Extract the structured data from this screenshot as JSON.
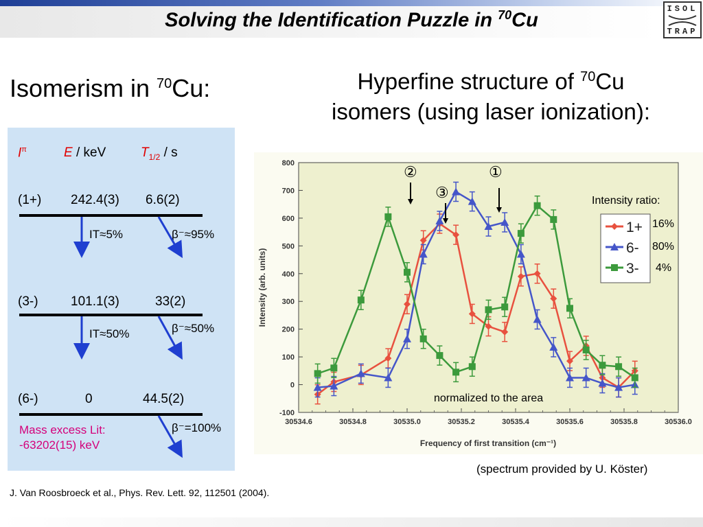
{
  "slide": {
    "title_main": "Solving the Identification Puzzle in ",
    "title_mass": "70",
    "title_elem": "Cu",
    "logo_top": "ISOL",
    "logo_bottom": "TRAP"
  },
  "left": {
    "heading_pre": "Isomerism in ",
    "heading_mass": "70",
    "heading_post": "Cu:",
    "col_spin": "I",
    "col_spin_sup": "π",
    "col_energy_var": "E",
    "col_energy_unit": " / keV",
    "col_halflife_var": "T",
    "col_halflife_sub": "1/2",
    "col_halflife_unit": " / s",
    "levels": [
      {
        "spin": "(1+)",
        "energy": "242.4(3)",
        "halflife": "6.6(2)",
        "it": "IT≈5%",
        "beta": "β⁻≈95%"
      },
      {
        "spin": "(3-)",
        "energy": "101.1(3)",
        "halflife": "33(2)",
        "it": "IT≈50%",
        "beta": "β⁻≈50%"
      },
      {
        "spin": "(6-)",
        "energy": "0",
        "halflife": "44.5(2)",
        "beta": "β⁻=100%"
      }
    ],
    "mass_excess_label": "Mass excess Lit:",
    "mass_excess_value": "-63202(15) keV"
  },
  "right": {
    "heading_line1_pre": "Hyperfine structure of ",
    "heading_line1_mass": "70",
    "heading_line1_post": "Cu",
    "heading_line2": "isomers (using laser ionization):",
    "intensity_ratio_label": "Intensity ratio:",
    "ratios": [
      "16%",
      "80%",
      "4%"
    ],
    "markers": [
      "②",
      "③",
      "①"
    ],
    "normalized_note": "normalized to the area",
    "credit": "(spectrum provided by U. Köster)"
  },
  "reference": "J. Van Roosbroeck et al., Phys. Rev. Lett. 92, 112501 (2004).",
  "colors": {
    "accent_red": "#e00000",
    "mass_excess": "#d4007a",
    "arrow_blue": "#1f3fd0",
    "panel": "#cfe3f5"
  },
  "chart_data": {
    "type": "line",
    "xlabel": "Frequency of first transition (cm⁻¹)",
    "ylabel": "Intensity (arb. units)",
    "xlim": [
      30534.6,
      30536.0
    ],
    "ylim": [
      -100,
      800
    ],
    "x_ticks": [
      "30534.6",
      "30534.8",
      "30535.0",
      "30535.2",
      "30535.4",
      "30535.6",
      "30535.8",
      "30536.0"
    ],
    "y_ticks": [
      "-100",
      "0",
      "100",
      "200",
      "300",
      "400",
      "500",
      "600",
      "700",
      "800"
    ],
    "x": [
      30534.67,
      30534.73,
      30534.83,
      30534.93,
      30535.0,
      30535.06,
      30535.12,
      30535.18,
      30535.24,
      30535.3,
      30535.36,
      30535.42,
      30535.48,
      30535.54,
      30535.6,
      30535.66,
      30535.72,
      30535.78,
      30535.84,
      30535.9
    ],
    "series": [
      {
        "name": "1+",
        "color": "#e8513f",
        "marker": "diamond",
        "values": [
          -35,
          10,
          35,
          95,
          290,
          520,
          580,
          540,
          255,
          210,
          190,
          390,
          400,
          310,
          85,
          140,
          25,
          -10,
          50,
          null
        ]
      },
      {
        "name": "6-",
        "color": "#4556c9",
        "marker": "triangle",
        "values": [
          -10,
          -5,
          40,
          25,
          165,
          470,
          590,
          695,
          660,
          570,
          585,
          470,
          235,
          135,
          25,
          25,
          5,
          -10,
          0,
          null
        ]
      },
      {
        "name": "3-",
        "color": "#3c9a3c",
        "marker": "square",
        "values": [
          40,
          60,
          305,
          605,
          405,
          165,
          105,
          45,
          65,
          270,
          280,
          545,
          645,
          595,
          275,
          125,
          70,
          65,
          25,
          null
        ]
      }
    ],
    "legend_position": "right",
    "grid": false
  }
}
